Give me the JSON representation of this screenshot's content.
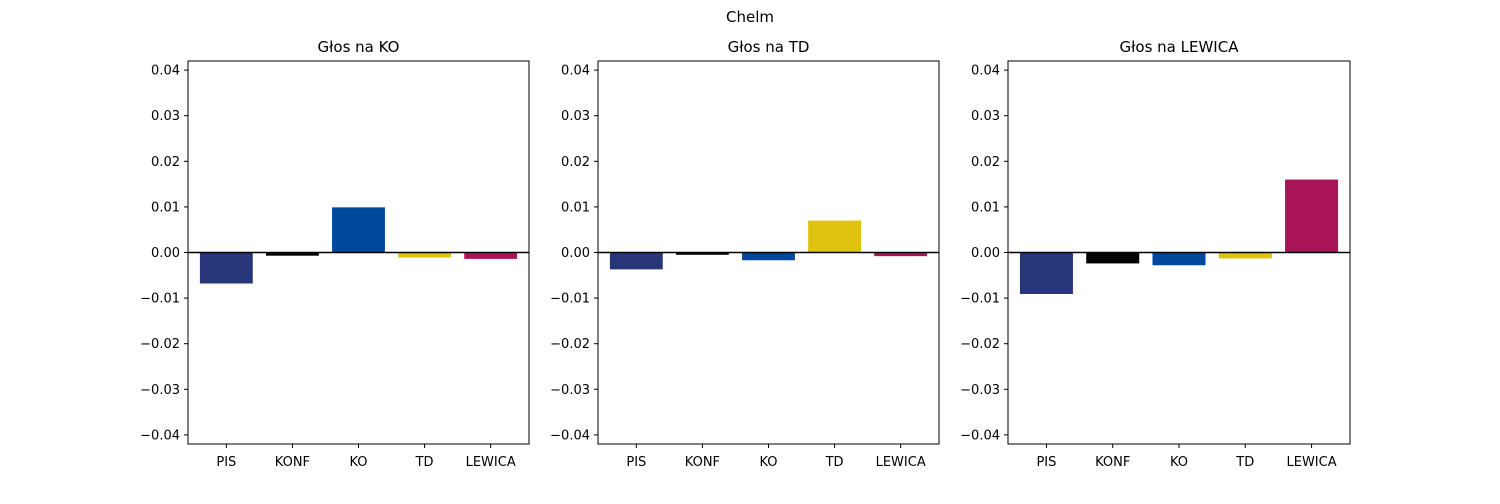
{
  "figure": {
    "suptitle": "Chelm"
  },
  "chart_data": [
    {
      "type": "bar",
      "title": "Głos na KO",
      "categories": [
        "PIS",
        "KONF",
        "KO",
        "TD",
        "LEWICA"
      ],
      "values": [
        -0.0068,
        -0.0007,
        0.0099,
        -0.0011,
        -0.0014
      ],
      "colors": [
        "#273679",
        "#000000",
        "#00489b",
        "#dfc30f",
        "#aa1459"
      ],
      "ylim": [
        -0.042,
        0.042
      ],
      "yticks": [
        -0.04,
        -0.03,
        -0.02,
        -0.01,
        0.0,
        0.01,
        0.02,
        0.03,
        0.04
      ],
      "ytick_labels": [
        "−0.04",
        "−0.03",
        "−0.02",
        "−0.01",
        "0.00",
        "0.01",
        "0.02",
        "0.03",
        "0.04"
      ],
      "zero_line": true,
      "grid": false
    },
    {
      "type": "bar",
      "title": "Głos na TD",
      "categories": [
        "PIS",
        "KONF",
        "KO",
        "TD",
        "LEWICA"
      ],
      "values": [
        -0.0037,
        -0.0005,
        -0.0017,
        0.007,
        -0.0008
      ],
      "colors": [
        "#273679",
        "#000000",
        "#00489b",
        "#dfc30f",
        "#aa1459"
      ],
      "ylim": [
        -0.042,
        0.042
      ],
      "yticks": [
        -0.04,
        -0.03,
        -0.02,
        -0.01,
        0.0,
        0.01,
        0.02,
        0.03,
        0.04
      ],
      "ytick_labels": [
        "−0.04",
        "−0.03",
        "−0.02",
        "−0.01",
        "0.00",
        "0.01",
        "0.02",
        "0.03",
        "0.04"
      ],
      "zero_line": true,
      "grid": false
    },
    {
      "type": "bar",
      "title": "Głos na LEWICA",
      "categories": [
        "PIS",
        "KONF",
        "KO",
        "TD",
        "LEWICA"
      ],
      "values": [
        -0.0091,
        -0.0024,
        -0.0028,
        -0.0013,
        0.016
      ],
      "colors": [
        "#273679",
        "#000000",
        "#00489b",
        "#dfc30f",
        "#aa1459"
      ],
      "ylim": [
        -0.042,
        0.042
      ],
      "yticks": [
        -0.04,
        -0.03,
        -0.02,
        -0.01,
        0.0,
        0.01,
        0.02,
        0.03,
        0.04
      ],
      "ytick_labels": [
        "−0.04",
        "−0.03",
        "−0.02",
        "−0.01",
        "0.00",
        "0.01",
        "0.02",
        "0.03",
        "0.04"
      ],
      "zero_line": true,
      "grid": false
    }
  ]
}
